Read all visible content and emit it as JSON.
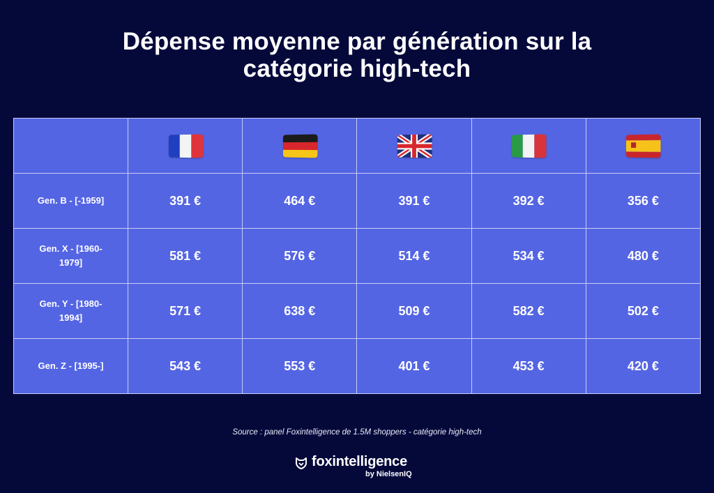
{
  "title_lines": [
    "Dépense moyenne par génération sur la",
    "catégorie high-tech"
  ],
  "chart_data": {
    "type": "table",
    "title": "Dépense moyenne par génération sur la catégorie high-tech",
    "columns": [
      "France",
      "Germany",
      "United Kingdom",
      "Italy",
      "Spain"
    ],
    "columns_display": "flags",
    "rows": [
      {
        "label": "Gen. B - [-1959]",
        "values": [
          "391 €",
          "464 €",
          "391 €",
          "392 €",
          "356 €"
        ]
      },
      {
        "label": "Gen. X - [1960-1979]",
        "values": [
          "581 €",
          "576 €",
          "514 €",
          "534 €",
          "480 €"
        ]
      },
      {
        "label": "Gen. Y - [1980-1994]",
        "values": [
          "571 €",
          "638 €",
          "509 €",
          "582 €",
          "502 €"
        ]
      },
      {
        "label": "Gen. Z - [1995-]",
        "values": [
          "543 €",
          "553 €",
          "401 €",
          "453 €",
          "420 €"
        ]
      }
    ]
  },
  "flags": [
    "fr-flag-icon",
    "de-flag-icon",
    "gb-flag-icon",
    "it-flag-icon",
    "es-flag-icon"
  ],
  "colors": {
    "background": "#05093a",
    "table_fill": "#5465e3",
    "grid": "#c7cdf6",
    "text": "#ffffff"
  },
  "source": "Source : panel Foxintelligence de 1.5M shoppers - catégorie high-tech",
  "logo": {
    "icon": "fox-shield-icon",
    "brand": "foxintelligence",
    "byline": "by NielsenIQ"
  }
}
